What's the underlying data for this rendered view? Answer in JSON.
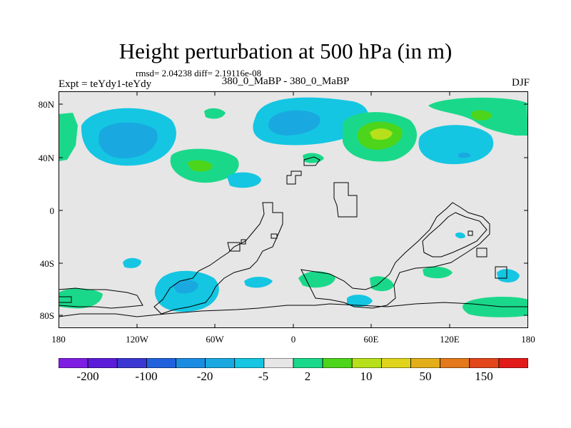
{
  "header": {
    "title": "Height perturbation at 500 hPa (in m)",
    "stats": "rmsd= 2.04238 diff= 2.19116e-08",
    "experiment": "Expt = teYdy1-teYdy",
    "cases": "380_0_MaBP - 380_0_MaBP",
    "season": "DJF"
  },
  "axes": {
    "y_ticks": [
      "80N",
      "40N",
      "0",
      "40S",
      "80S"
    ],
    "x_ticks": [
      "180",
      "120W",
      "60W",
      "0",
      "60E",
      "120E",
      "180"
    ]
  },
  "colorbar": {
    "colors": [
      "#7e1ee2",
      "#5a1cd9",
      "#3a37d2",
      "#2261dd",
      "#1c8ce2",
      "#19a9e0",
      "#14c6e2",
      "#e6e6e6",
      "#1ad88a",
      "#4cd51a",
      "#b6e11a",
      "#dfd41a",
      "#e3ae1a",
      "#e3791a",
      "#e2461a",
      "#e21a1a"
    ],
    "labels": [
      "-200",
      "-100",
      "-20",
      "-5",
      "2",
      "10",
      "50",
      "150"
    ]
  },
  "colors": {
    "background_field": "#e6e6e6",
    "land_outline": "#000000"
  }
}
